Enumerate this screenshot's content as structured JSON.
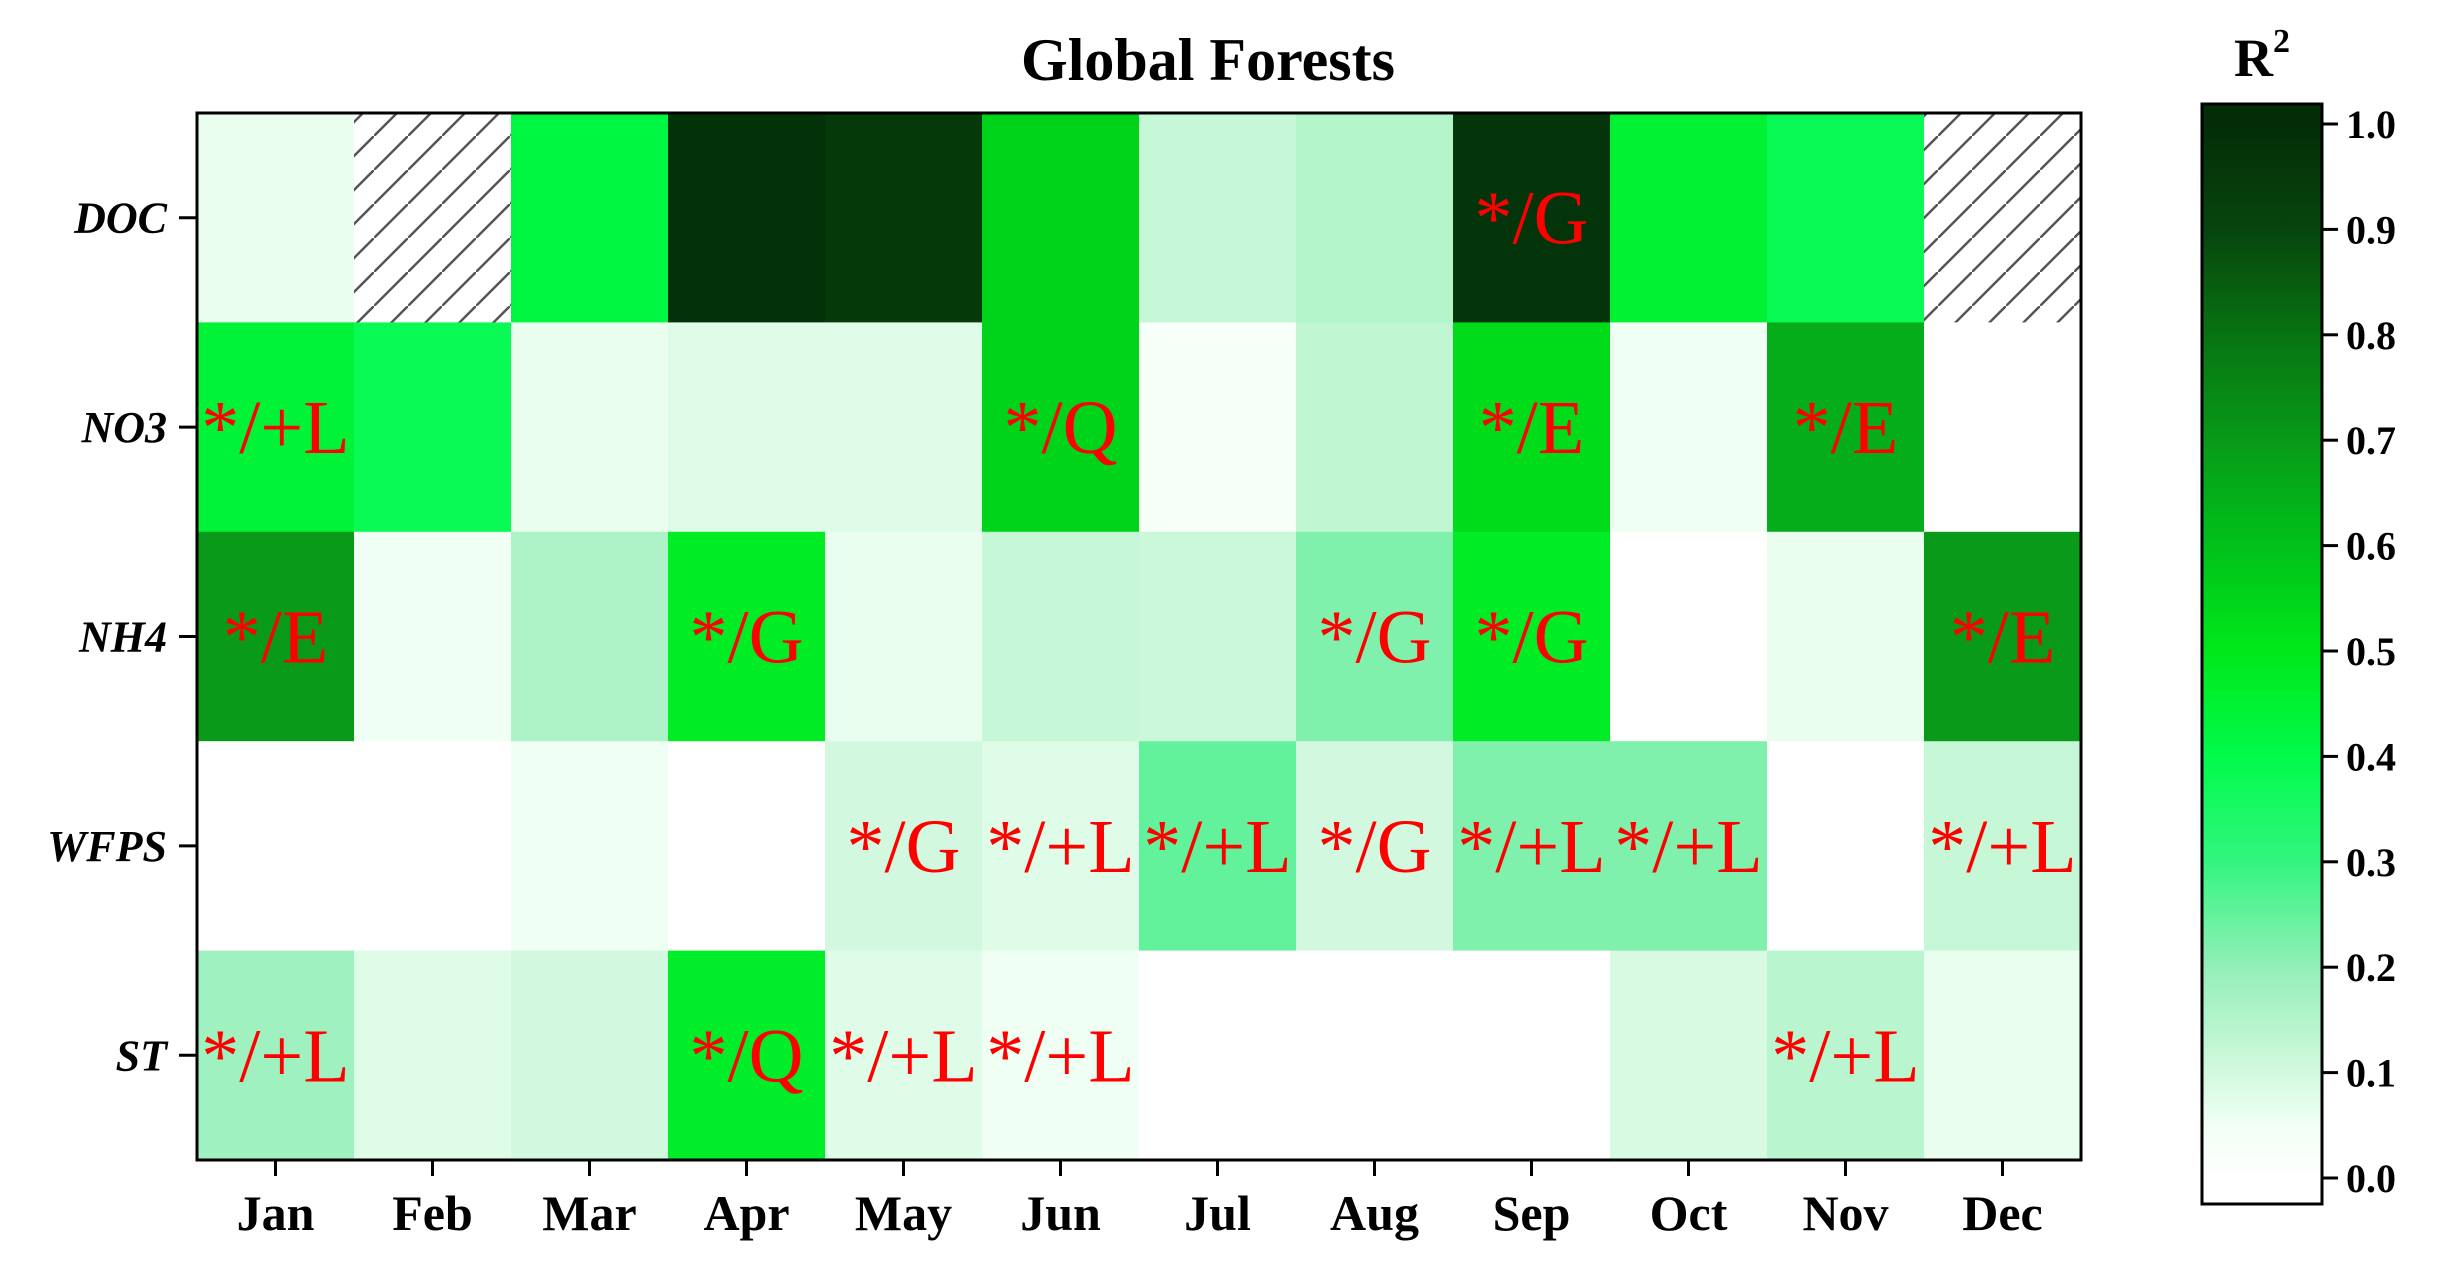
{
  "chart_data": {
    "type": "heatmap",
    "title": "Global Forests",
    "rows": [
      "DOC",
      "NO3",
      "NH4",
      "WFPS",
      "ST"
    ],
    "columns": [
      "Jan",
      "Feb",
      "Mar",
      "Apr",
      "May",
      "Jun",
      "Jul",
      "Aug",
      "Sep",
      "Oct",
      "Nov",
      "Dec"
    ],
    "values": [
      [
        0.06,
        null,
        0.42,
        0.98,
        0.95,
        0.55,
        0.12,
        0.15,
        0.97,
        0.45,
        0.38,
        null
      ],
      [
        0.44,
        0.38,
        0.06,
        0.08,
        0.08,
        0.55,
        0.03,
        0.13,
        0.53,
        0.05,
        0.65,
        0.0
      ],
      [
        0.7,
        0.05,
        0.16,
        0.48,
        0.06,
        0.12,
        0.11,
        0.22,
        0.48,
        0.0,
        0.06,
        0.7
      ],
      [
        0.0,
        0.0,
        0.05,
        0.0,
        0.1,
        0.08,
        0.25,
        0.1,
        0.22,
        0.22,
        0.0,
        0.12
      ],
      [
        0.18,
        0.08,
        0.1,
        0.47,
        0.08,
        0.05,
        0.0,
        0.0,
        0.0,
        0.09,
        0.14,
        0.06
      ]
    ],
    "annotations": [
      [
        "",
        "",
        "",
        "",
        "",
        "",
        "",
        "",
        "*/G",
        "",
        "",
        ""
      ],
      [
        "*/+L",
        "",
        "",
        "",
        "",
        "*/Q",
        "",
        "",
        "*/E",
        "",
        "*/E",
        ""
      ],
      [
        "*/E",
        "",
        "",
        "*/G",
        "",
        "",
        "",
        "*/G",
        "*/G",
        "",
        "",
        "*/E"
      ],
      [
        "",
        "",
        "",
        "",
        "*/G",
        "*/+L",
        "*/+L",
        "*/G",
        "*/+L",
        "*/+L",
        "",
        "*/+L"
      ],
      [
        "*/+L",
        "",
        "",
        "*/Q",
        "*/+L",
        "*/+L",
        "",
        "",
        "",
        "",
        "*/+L",
        ""
      ]
    ],
    "colorbar": {
      "title": "R",
      "title_superscript": "2",
      "range": [
        0.0,
        1.0
      ],
      "ticks": [
        "0.0",
        "0.1",
        "0.2",
        "0.3",
        "0.4",
        "0.5",
        "0.6",
        "0.7",
        "0.8",
        "0.9",
        "1.0"
      ],
      "stops": [
        {
          "v": 0.0,
          "color": "#ffffff"
        },
        {
          "v": 0.05,
          "color": "#f0fff4"
        },
        {
          "v": 0.12,
          "color": "#c6f7d6"
        },
        {
          "v": 0.2,
          "color": "#93efb8"
        },
        {
          "v": 0.3,
          "color": "#33f57f"
        },
        {
          "v": 0.4,
          "color": "#00fb4b"
        },
        {
          "v": 0.5,
          "color": "#00e81a"
        },
        {
          "v": 0.6,
          "color": "#00c11a"
        },
        {
          "v": 0.7,
          "color": "#089a18"
        },
        {
          "v": 0.8,
          "color": "#087312"
        },
        {
          "v": 0.9,
          "color": "#07450d"
        },
        {
          "v": 1.0,
          "color": "#032d07"
        }
      ]
    },
    "missing_style": "hatched",
    "annotation_color": "#ff0000"
  }
}
